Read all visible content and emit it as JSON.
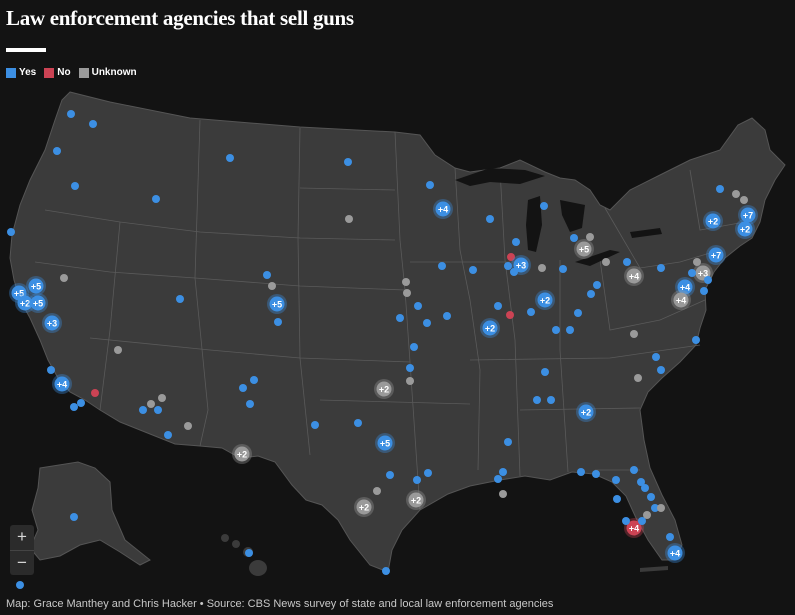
{
  "title": "Law enforcement agencies that sell guns",
  "legend": [
    {
      "label": "Yes",
      "color": "#3c8fe3"
    },
    {
      "label": "No",
      "color": "#cc4354"
    },
    {
      "label": "Unknown",
      "color": "#9a9a9a"
    }
  ],
  "zoom": {
    "in_label": "+",
    "out_label": "−"
  },
  "footer": "Map: Grace Manthey and Chris Hacker • Source: CBS News survey of state and local law enforcement agencies",
  "map_data": {
    "markers": [
      {
        "status": "yes",
        "count": "",
        "pt": [
          71,
          114
        ]
      },
      {
        "status": "yes",
        "count": "",
        "pt": [
          93,
          124
        ]
      },
      {
        "status": "yes",
        "count": "",
        "pt": [
          57,
          151
        ]
      },
      {
        "status": "yes",
        "count": "",
        "pt": [
          75,
          186
        ]
      },
      {
        "status": "yes",
        "count": "",
        "pt": [
          156,
          199
        ]
      },
      {
        "status": "yes",
        "count": "",
        "pt": [
          230,
          158
        ]
      },
      {
        "status": "yes",
        "count": "",
        "pt": [
          348,
          162
        ]
      },
      {
        "status": "yes",
        "count": "",
        "pt": [
          11,
          232
        ]
      },
      {
        "status": "yes",
        "count": "+5",
        "pt": [
          19,
          293
        ]
      },
      {
        "status": "yes",
        "count": "+5",
        "pt": [
          36,
          286
        ]
      },
      {
        "status": "yes",
        "count": "+2",
        "pt": [
          25,
          303
        ]
      },
      {
        "status": "yes",
        "count": "+5",
        "pt": [
          38,
          303
        ]
      },
      {
        "status": "yes",
        "count": "+3",
        "pt": [
          52,
          323
        ]
      },
      {
        "status": "yes",
        "count": "+4",
        "pt": [
          62,
          384
        ]
      },
      {
        "status": "yes",
        "count": "",
        "pt": [
          51,
          370
        ]
      },
      {
        "status": "yes",
        "count": "",
        "pt": [
          74,
          407
        ]
      },
      {
        "status": "yes",
        "count": "",
        "pt": [
          81,
          403
        ]
      },
      {
        "status": "no",
        "count": "",
        "pt": [
          95,
          393
        ]
      },
      {
        "status": "unknown",
        "count": "",
        "pt": [
          64,
          278
        ]
      },
      {
        "status": "unknown",
        "count": "",
        "pt": [
          118,
          350
        ]
      },
      {
        "status": "yes",
        "count": "",
        "pt": [
          180,
          299
        ]
      },
      {
        "status": "yes",
        "count": "+5",
        "pt": [
          277,
          304
        ]
      },
      {
        "status": "yes",
        "count": "",
        "pt": [
          267,
          275
        ]
      },
      {
        "status": "yes",
        "count": "",
        "pt": [
          278,
          322
        ]
      },
      {
        "status": "unknown",
        "count": "",
        "pt": [
          272,
          286
        ]
      },
      {
        "status": "unknown",
        "count": "",
        "pt": [
          349,
          219
        ]
      },
      {
        "status": "yes",
        "count": "",
        "pt": [
          243,
          388
        ]
      },
      {
        "status": "yes",
        "count": "",
        "pt": [
          254,
          380
        ]
      },
      {
        "status": "yes",
        "count": "",
        "pt": [
          250,
          404
        ]
      },
      {
        "status": "yes",
        "count": "",
        "pt": [
          143,
          410
        ]
      },
      {
        "status": "yes",
        "count": "",
        "pt": [
          158,
          410
        ]
      },
      {
        "status": "yes",
        "count": "",
        "pt": [
          168,
          435
        ]
      },
      {
        "status": "unknown",
        "count": "",
        "pt": [
          151,
          404
        ]
      },
      {
        "status": "unknown",
        "count": "",
        "pt": [
          162,
          398
        ]
      },
      {
        "status": "unknown",
        "count": "",
        "pt": [
          188,
          426
        ]
      },
      {
        "status": "unknown",
        "count": "+2",
        "pt": [
          242,
          454
        ]
      },
      {
        "status": "yes",
        "count": "",
        "pt": [
          315,
          425
        ]
      },
      {
        "status": "yes",
        "count": "+5",
        "pt": [
          385,
          443
        ]
      },
      {
        "status": "yes",
        "count": "",
        "pt": [
          358,
          423
        ]
      },
      {
        "status": "unknown",
        "count": "+2",
        "pt": [
          384,
          389
        ]
      },
      {
        "status": "yes",
        "count": "",
        "pt": [
          410,
          368
        ]
      },
      {
        "status": "unknown",
        "count": "",
        "pt": [
          410,
          381
        ]
      },
      {
        "status": "yes",
        "count": "",
        "pt": [
          414,
          347
        ]
      },
      {
        "status": "yes",
        "count": "",
        "pt": [
          400,
          318
        ]
      },
      {
        "status": "yes",
        "count": "",
        "pt": [
          427,
          323
        ]
      },
      {
        "status": "yes",
        "count": "",
        "pt": [
          447,
          316
        ]
      },
      {
        "status": "yes",
        "count": "",
        "pt": [
          418,
          306
        ]
      },
      {
        "status": "unknown",
        "count": "",
        "pt": [
          406,
          282
        ]
      },
      {
        "status": "unknown",
        "count": "",
        "pt": [
          407,
          293
        ]
      },
      {
        "status": "yes",
        "count": "",
        "pt": [
          442,
          266
        ]
      },
      {
        "status": "yes",
        "count": "",
        "pt": [
          490,
          219
        ]
      },
      {
        "status": "yes",
        "count": "",
        "pt": [
          430,
          185
        ]
      },
      {
        "status": "yes",
        "count": "+4",
        "pt": [
          443,
          209
        ]
      },
      {
        "status": "yes",
        "count": "",
        "pt": [
          544,
          206
        ]
      },
      {
        "status": "yes",
        "count": "",
        "pt": [
          516,
          242
        ]
      },
      {
        "status": "no",
        "count": "",
        "pt": [
          511,
          257
        ]
      },
      {
        "status": "yes",
        "count": "",
        "pt": [
          508,
          266
        ]
      },
      {
        "status": "yes",
        "count": "+3",
        "pt": [
          521,
          265
        ]
      },
      {
        "status": "yes",
        "count": "",
        "pt": [
          514,
          272
        ]
      },
      {
        "status": "unknown",
        "count": "",
        "pt": [
          542,
          268
        ]
      },
      {
        "status": "yes",
        "count": "",
        "pt": [
          473,
          270
        ]
      },
      {
        "status": "yes",
        "count": "",
        "pt": [
          498,
          306
        ]
      },
      {
        "status": "no",
        "count": "",
        "pt": [
          510,
          315
        ]
      },
      {
        "status": "yes",
        "count": "+2",
        "pt": [
          490,
          328
        ]
      },
      {
        "status": "yes",
        "count": "+2",
        "pt": [
          545,
          300
        ]
      },
      {
        "status": "yes",
        "count": "",
        "pt": [
          531,
          312
        ]
      },
      {
        "status": "yes",
        "count": "",
        "pt": [
          556,
          330
        ]
      },
      {
        "status": "yes",
        "count": "",
        "pt": [
          570,
          330
        ]
      },
      {
        "status": "yes",
        "count": "",
        "pt": [
          578,
          313
        ]
      },
      {
        "status": "yes",
        "count": "",
        "pt": [
          591,
          294
        ]
      },
      {
        "status": "yes",
        "count": "",
        "pt": [
          597,
          285
        ]
      },
      {
        "status": "yes",
        "count": "",
        "pt": [
          563,
          269
        ]
      },
      {
        "status": "yes",
        "count": "",
        "pt": [
          574,
          238
        ]
      },
      {
        "status": "unknown",
        "count": "+5",
        "pt": [
          584,
          249
        ]
      },
      {
        "status": "unknown",
        "count": "",
        "pt": [
          590,
          237
        ]
      },
      {
        "status": "unknown",
        "count": "",
        "pt": [
          606,
          262
        ]
      },
      {
        "status": "unknown",
        "count": "+4",
        "pt": [
          634,
          276
        ]
      },
      {
        "status": "yes",
        "count": "",
        "pt": [
          661,
          268
        ]
      },
      {
        "status": "yes",
        "count": "",
        "pt": [
          627,
          262
        ]
      },
      {
        "status": "yes",
        "count": "+4",
        "pt": [
          685,
          287
        ]
      },
      {
        "status": "unknown",
        "count": "+4",
        "pt": [
          681,
          300
        ]
      },
      {
        "status": "unknown",
        "count": "+3",
        "pt": [
          703,
          273
        ]
      },
      {
        "status": "unknown",
        "count": "",
        "pt": [
          697,
          262
        ]
      },
      {
        "status": "yes",
        "count": "",
        "pt": [
          692,
          273
        ]
      },
      {
        "status": "yes",
        "count": "+7",
        "pt": [
          716,
          255
        ]
      },
      {
        "status": "yes",
        "count": "",
        "pt": [
          708,
          280
        ]
      },
      {
        "status": "yes",
        "count": "",
        "pt": [
          704,
          291
        ]
      },
      {
        "status": "yes",
        "count": "+2",
        "pt": [
          713,
          221
        ]
      },
      {
        "status": "yes",
        "count": "+7",
        "pt": [
          748,
          215
        ]
      },
      {
        "status": "yes",
        "count": "+2",
        "pt": [
          745,
          229
        ]
      },
      {
        "status": "yes",
        "count": "",
        "pt": [
          720,
          189
        ]
      },
      {
        "status": "unknown",
        "count": "",
        "pt": [
          736,
          194
        ]
      },
      {
        "status": "unknown",
        "count": "",
        "pt": [
          744,
          200
        ]
      },
      {
        "status": "yes",
        "count": "",
        "pt": [
          696,
          340
        ]
      },
      {
        "status": "yes",
        "count": "",
        "pt": [
          656,
          357
        ]
      },
      {
        "status": "yes",
        "count": "",
        "pt": [
          661,
          370
        ]
      },
      {
        "status": "unknown",
        "count": "",
        "pt": [
          634,
          334
        ]
      },
      {
        "status": "unknown",
        "count": "",
        "pt": [
          638,
          378
        ]
      },
      {
        "status": "yes",
        "count": "",
        "pt": [
          545,
          372
        ]
      },
      {
        "status": "yes",
        "count": "",
        "pt": [
          537,
          400
        ]
      },
      {
        "status": "yes",
        "count": "",
        "pt": [
          551,
          400
        ]
      },
      {
        "status": "yes",
        "count": "+2",
        "pt": [
          586,
          412
        ]
      },
      {
        "status": "yes",
        "count": "",
        "pt": [
          508,
          442
        ]
      },
      {
        "status": "yes",
        "count": "",
        "pt": [
          581,
          472
        ]
      },
      {
        "status": "yes",
        "count": "",
        "pt": [
          596,
          474
        ]
      },
      {
        "status": "yes",
        "count": "",
        "pt": [
          616,
          480
        ]
      },
      {
        "status": "yes",
        "count": "",
        "pt": [
          634,
          470
        ]
      },
      {
        "status": "yes",
        "count": "",
        "pt": [
          641,
          482
        ]
      },
      {
        "status": "yes",
        "count": "",
        "pt": [
          651,
          497
        ]
      },
      {
        "status": "yes",
        "count": "",
        "pt": [
          645,
          488
        ]
      },
      {
        "status": "yes",
        "count": "",
        "pt": [
          655,
          508
        ]
      },
      {
        "status": "unknown",
        "count": "",
        "pt": [
          647,
          515
        ]
      },
      {
        "status": "unknown",
        "count": "",
        "pt": [
          661,
          508
        ]
      },
      {
        "status": "yes",
        "count": "",
        "pt": [
          617,
          499
        ]
      },
      {
        "status": "no",
        "count": "+4",
        "pt": [
          634,
          528
        ]
      },
      {
        "status": "yes",
        "count": "",
        "pt": [
          626,
          521
        ]
      },
      {
        "status": "yes",
        "count": "",
        "pt": [
          642,
          521
        ]
      },
      {
        "status": "yes",
        "count": "",
        "pt": [
          670,
          537
        ]
      },
      {
        "status": "yes",
        "count": "+4",
        "pt": [
          675,
          553
        ]
      },
      {
        "status": "yes",
        "count": "",
        "pt": [
          503,
          472
        ]
      },
      {
        "status": "yes",
        "count": "",
        "pt": [
          498,
          479
        ]
      },
      {
        "status": "unknown",
        "count": "",
        "pt": [
          503,
          494
        ]
      },
      {
        "status": "yes",
        "count": "",
        "pt": [
          428,
          473
        ]
      },
      {
        "status": "yes",
        "count": "",
        "pt": [
          417,
          480
        ]
      },
      {
        "status": "yes",
        "count": "",
        "pt": [
          390,
          475
        ]
      },
      {
        "status": "unknown",
        "count": "+2",
        "pt": [
          416,
          500
        ]
      },
      {
        "status": "unknown",
        "count": "+2",
        "pt": [
          364,
          507
        ]
      },
      {
        "status": "unknown",
        "count": "",
        "pt": [
          377,
          491
        ]
      },
      {
        "status": "yes",
        "count": "",
        "pt": [
          386,
          571
        ]
      },
      {
        "status": "yes",
        "count": "",
        "pt": [
          74,
          517
        ]
      },
      {
        "status": "yes",
        "count": "",
        "pt": [
          249,
          553
        ]
      },
      {
        "status": "yes",
        "count": "",
        "pt": [
          20,
          585
        ]
      }
    ]
  }
}
